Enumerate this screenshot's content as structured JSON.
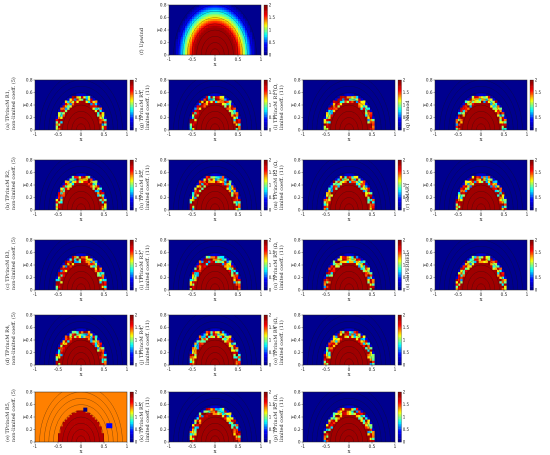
{
  "chart_data": {
    "type": "heatmap",
    "x_range": [
      -1,
      1
    ],
    "y_range": [
      0,
      0.8
    ],
    "x_ticks": [
      "-1",
      "-0.5",
      "0",
      "0.5",
      "1"
    ],
    "y_ticks": [
      "0",
      "0.2",
      "0.4",
      "0.6",
      "0.8"
    ],
    "colorbar_ticks": [
      "0",
      "0.5",
      "1",
      "1.5",
      "2"
    ],
    "colorbar_range": [
      0,
      2
    ],
    "xlabel": "x",
    "ylabel": "y",
    "disk_radius": 0.5,
    "colormap": [
      "#00008f",
      "#0000ff",
      "#00ffff",
      "#ffff00",
      "#ff0000",
      "#800000"
    ],
    "panels": [
      {
        "id": "f",
        "caption": [
          "(f) Upwind"
        ]
      },
      {
        "id": "a",
        "caption": [
          "(a) TPrincM R1,",
          "non-limited coeff. (5)"
        ]
      },
      {
        "id": "b",
        "caption": [
          "(b) TPrincM R2,",
          "non-limited coeff. (5)"
        ]
      },
      {
        "id": "c",
        "caption": [
          "(c) TPrincM R3,",
          "non-limited coeff. (5)"
        ]
      },
      {
        "id": "d",
        "caption": [
          "(d) TPrincM R4,",
          "non-limited coeff. (5)"
        ]
      },
      {
        "id": "e",
        "caption": [
          "(e) TPrincM R5,",
          "non-limited coeff. (5)"
        ]
      },
      {
        "id": "g",
        "caption": [
          "(g) TPrincM R1,",
          "limited coeff. (11)"
        ]
      },
      {
        "id": "h",
        "caption": [
          "(h) TPrincM R2,",
          "limited coeff. (11)"
        ]
      },
      {
        "id": "i",
        "caption": [
          "(i) TPrincM R3,",
          "limited coeff. (11)"
        ]
      },
      {
        "id": "j",
        "caption": [
          "(j) TPrincM R4,",
          "limited coeff. (11)"
        ]
      },
      {
        "id": "k",
        "caption": [
          "(k) TPrincM R5,",
          "limited coeff. (11)"
        ]
      },
      {
        "id": "l",
        "caption": [
          "(l) TPrincM R1 (Ω,",
          "limited coeff. (11)"
        ]
      },
      {
        "id": "m",
        "caption": [
          "(m) TPrincM R2 (Ω,",
          "limited coeff. (11)"
        ]
      },
      {
        "id": "n",
        "caption": [
          "(n) TPrincM R3 (Ω,",
          "limited coeff. (11)"
        ]
      },
      {
        "id": "o",
        "caption": [
          "(o) TPrincM R4 (Ω,",
          "limited coeff. (11)"
        ]
      },
      {
        "id": "p",
        "caption": [
          "(p) TPrincM R5 (Ω,",
          "limited coeff. (11)"
        ]
      },
      {
        "id": "q",
        "caption": [
          "(q) Minmod"
        ]
      },
      {
        "id": "r",
        "caption": [
          "(r) SMART"
        ]
      },
      {
        "id": "s",
        "caption": [
          "(s) SUPERBEE"
        ]
      }
    ]
  }
}
